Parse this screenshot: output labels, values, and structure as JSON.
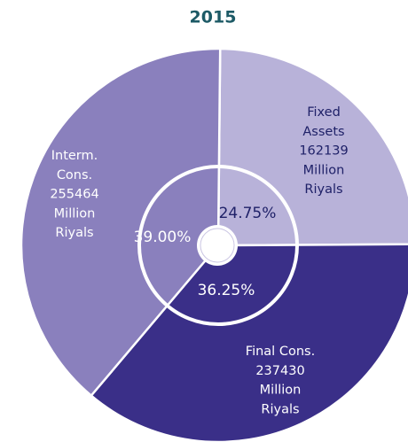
{
  "chart_data": {
    "type": "pie",
    "title": "2015",
    "categories": [
      [
        "Fixed",
        "Assets"
      ],
      [
        "Final Cons."
      ],
      [
        "Interm.",
        "Cons."
      ]
    ],
    "amounts": [
      162139,
      237430,
      255464
    ],
    "unit_lines": [
      "Million",
      "Riyals"
    ],
    "values": [
      24.75,
      36.25,
      39.0
    ],
    "value_labels": [
      "24.75%",
      "36.25%",
      "39.00%"
    ],
    "colors": [
      "#b8b2d9",
      "#3a2f88",
      "#8a80bd"
    ],
    "label_colors": [
      "#1f2168",
      "#ffffff",
      "#ffffff"
    ]
  }
}
